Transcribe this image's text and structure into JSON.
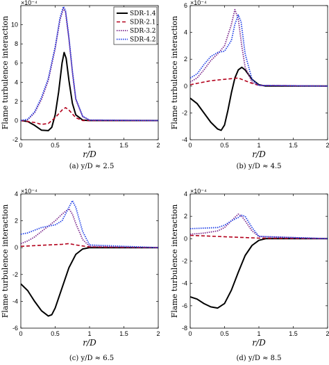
{
  "figure": {
    "series_styles": [
      {
        "name": "SDR-1.4",
        "color": "#000000",
        "dash": "",
        "width": 2
      },
      {
        "name": "SDR-2.1",
        "color": "#b3001b",
        "dash": "5,3",
        "width": 1.6
      },
      {
        "name": "SDR-3.2",
        "color": "#7d2a8c",
        "dash": "1.5,1.5",
        "width": 1.8
      },
      {
        "name": "SDR-4.2",
        "color": "#1f3fe6",
        "dash": "1.5,1.5",
        "width": 1.8
      }
    ]
  },
  "chart_data": [
    {
      "type": "line",
      "caption": "(a) y/D ≈ 2.5",
      "ylabel": "Flame turbulence interaction",
      "xlabel": "r/D",
      "y_exponent": "×10⁻⁴",
      "xlim": [
        0,
        2
      ],
      "ylim": [
        -2,
        12
      ],
      "xticks": [
        "0",
        "0.5",
        "1",
        "1.5",
        "2"
      ],
      "yticks": [
        "-2",
        "0",
        "2",
        "4",
        "6",
        "8",
        "10"
      ],
      "legend": "top-right",
      "series": [
        {
          "name": "SDR-1.4",
          "points": [
            [
              0,
              0
            ],
            [
              0.1,
              -0.1
            ],
            [
              0.2,
              -0.5
            ],
            [
              0.3,
              -1.0
            ],
            [
              0.4,
              -1.05
            ],
            [
              0.45,
              -0.7
            ],
            [
              0.5,
              0.6
            ],
            [
              0.55,
              3.0
            ],
            [
              0.6,
              6.0
            ],
            [
              0.63,
              7.1
            ],
            [
              0.66,
              6.5
            ],
            [
              0.7,
              4.2
            ],
            [
              0.75,
              1.8
            ],
            [
              0.8,
              0.6
            ],
            [
              0.9,
              0.05
            ],
            [
              1,
              0
            ],
            [
              2,
              0
            ]
          ]
        },
        {
          "name": "SDR-2.1",
          "points": [
            [
              0,
              0
            ],
            [
              0.2,
              -0.2
            ],
            [
              0.3,
              -0.4
            ],
            [
              0.4,
              -0.3
            ],
            [
              0.5,
              0.3
            ],
            [
              0.6,
              1.1
            ],
            [
              0.65,
              1.35
            ],
            [
              0.7,
              1.1
            ],
            [
              0.8,
              0.3
            ],
            [
              0.9,
              0
            ],
            [
              2,
              0
            ]
          ]
        },
        {
          "name": "SDR-3.2",
          "points": [
            [
              0,
              0
            ],
            [
              0.1,
              0.1
            ],
            [
              0.2,
              0.8
            ],
            [
              0.3,
              2.2
            ],
            [
              0.4,
              4.2
            ],
            [
              0.5,
              7.5
            ],
            [
              0.57,
              10.5
            ],
            [
              0.62,
              11.7
            ],
            [
              0.65,
              11.3
            ],
            [
              0.7,
              8.5
            ],
            [
              0.75,
              5.0
            ],
            [
              0.8,
              2.2
            ],
            [
              0.9,
              0.4
            ],
            [
              1,
              0.05
            ],
            [
              2,
              0
            ]
          ]
        },
        {
          "name": "SDR-4.2",
          "points": [
            [
              0,
              0
            ],
            [
              0.1,
              0.15
            ],
            [
              0.2,
              0.9
            ],
            [
              0.3,
              2.4
            ],
            [
              0.4,
              4.4
            ],
            [
              0.5,
              7.7
            ],
            [
              0.57,
              10.7
            ],
            [
              0.62,
              11.9
            ],
            [
              0.65,
              11.5
            ],
            [
              0.7,
              8.7
            ],
            [
              0.75,
              5.2
            ],
            [
              0.8,
              2.3
            ],
            [
              0.9,
              0.45
            ],
            [
              1,
              0.05
            ],
            [
              2,
              0
            ]
          ]
        }
      ]
    },
    {
      "type": "line",
      "caption": "(b) y/D ≈ 4.5",
      "ylabel": "Flame turbulence interaction",
      "xlabel": "r/D",
      "y_exponent": "×10⁻⁴",
      "xlim": [
        0,
        2
      ],
      "ylim": [
        -4,
        6
      ],
      "xticks": [
        "0",
        "0.5",
        "1",
        "1.5",
        "2"
      ],
      "yticks": [
        "-4",
        "-2",
        "0",
        "2",
        "4",
        "6"
      ],
      "series": [
        {
          "name": "SDR-1.4",
          "points": [
            [
              0,
              -0.9
            ],
            [
              0.1,
              -1.3
            ],
            [
              0.2,
              -2.0
            ],
            [
              0.3,
              -2.7
            ],
            [
              0.4,
              -3.2
            ],
            [
              0.45,
              -3.3
            ],
            [
              0.5,
              -2.9
            ],
            [
              0.55,
              -1.8
            ],
            [
              0.6,
              -0.5
            ],
            [
              0.65,
              0.6
            ],
            [
              0.7,
              1.2
            ],
            [
              0.75,
              1.4
            ],
            [
              0.8,
              1.2
            ],
            [
              0.9,
              0.5
            ],
            [
              1,
              0.1
            ],
            [
              1.1,
              0
            ],
            [
              2,
              0
            ]
          ]
        },
        {
          "name": "SDR-2.1",
          "points": [
            [
              0,
              0.1
            ],
            [
              0.1,
              0.2
            ],
            [
              0.2,
              0.3
            ],
            [
              0.3,
              0.4
            ],
            [
              0.4,
              0.45
            ],
            [
              0.5,
              0.5
            ],
            [
              0.6,
              0.55
            ],
            [
              0.7,
              0.6
            ],
            [
              0.8,
              0.4
            ],
            [
              0.9,
              0.2
            ],
            [
              1,
              0.05
            ],
            [
              2,
              0
            ]
          ]
        },
        {
          "name": "SDR-3.2",
          "points": [
            [
              0,
              0.3
            ],
            [
              0.1,
              0.6
            ],
            [
              0.2,
              1.2
            ],
            [
              0.3,
              1.9
            ],
            [
              0.4,
              2.4
            ],
            [
              0.5,
              3.0
            ],
            [
              0.6,
              4.6
            ],
            [
              0.65,
              5.7
            ],
            [
              0.7,
              5.0
            ],
            [
              0.75,
              3.0
            ],
            [
              0.8,
              1.4
            ],
            [
              0.9,
              0.3
            ],
            [
              1,
              0.05
            ],
            [
              2,
              0
            ]
          ]
        },
        {
          "name": "SDR-4.2",
          "points": [
            [
              0,
              0.6
            ],
            [
              0.1,
              0.9
            ],
            [
              0.2,
              1.6
            ],
            [
              0.3,
              2.2
            ],
            [
              0.4,
              2.5
            ],
            [
              0.5,
              2.6
            ],
            [
              0.6,
              3.4
            ],
            [
              0.65,
              4.6
            ],
            [
              0.7,
              5.3
            ],
            [
              0.74,
              4.8
            ],
            [
              0.8,
              2.4
            ],
            [
              0.9,
              0.5
            ],
            [
              1,
              0.05
            ],
            [
              2,
              0
            ]
          ]
        }
      ]
    },
    {
      "type": "line",
      "caption": "(c) y/D ≈ 6.5",
      "ylabel": "Flame turbulence interaction",
      "xlabel": "r/D",
      "y_exponent": "×10⁻⁴",
      "xlim": [
        0,
        2
      ],
      "ylim": [
        -6,
        4
      ],
      "xticks": [
        "0",
        "0.5",
        "1",
        "1.5",
        "2"
      ],
      "yticks": [
        "-6",
        "-4",
        "-2",
        "0",
        "2",
        "4"
      ],
      "series": [
        {
          "name": "SDR-1.4",
          "points": [
            [
              0,
              -2.7
            ],
            [
              0.1,
              -3.2
            ],
            [
              0.2,
              -4.0
            ],
            [
              0.3,
              -4.7
            ],
            [
              0.4,
              -5.1
            ],
            [
              0.45,
              -5.0
            ],
            [
              0.5,
              -4.5
            ],
            [
              0.6,
              -3.0
            ],
            [
              0.7,
              -1.5
            ],
            [
              0.8,
              -0.5
            ],
            [
              0.9,
              -0.1
            ],
            [
              1,
              0
            ],
            [
              2,
              0
            ]
          ]
        },
        {
          "name": "SDR-2.1",
          "points": [
            [
              0,
              0.1
            ],
            [
              0.2,
              0.15
            ],
            [
              0.4,
              0.2
            ],
            [
              0.6,
              0.25
            ],
            [
              0.7,
              0.3
            ],
            [
              0.8,
              0.2
            ],
            [
              1,
              0.05
            ],
            [
              2,
              0
            ]
          ]
        },
        {
          "name": "SDR-3.2",
          "points": [
            [
              0,
              0.3
            ],
            [
              0.1,
              0.5
            ],
            [
              0.2,
              0.8
            ],
            [
              0.3,
              1.2
            ],
            [
              0.4,
              1.6
            ],
            [
              0.5,
              2.0
            ],
            [
              0.6,
              2.5
            ],
            [
              0.7,
              2.9
            ],
            [
              0.75,
              2.5
            ],
            [
              0.8,
              1.8
            ],
            [
              0.9,
              0.6
            ],
            [
              1,
              0.1
            ],
            [
              2,
              0
            ]
          ]
        },
        {
          "name": "SDR-4.2",
          "points": [
            [
              0,
              1.0
            ],
            [
              0.1,
              1.1
            ],
            [
              0.2,
              1.3
            ],
            [
              0.3,
              1.5
            ],
            [
              0.4,
              1.6
            ],
            [
              0.5,
              1.7
            ],
            [
              0.6,
              2.0
            ],
            [
              0.7,
              3.0
            ],
            [
              0.75,
              3.5
            ],
            [
              0.8,
              3.0
            ],
            [
              0.9,
              1.2
            ],
            [
              1,
              0.2
            ],
            [
              2,
              0
            ]
          ]
        }
      ]
    },
    {
      "type": "line",
      "caption": "(d) y/D ≈ 8.5",
      "ylabel": "Flame turbulence interaction",
      "xlabel": "r/D",
      "y_exponent": "×10⁻⁴",
      "xlim": [
        0,
        2
      ],
      "ylim": [
        -8,
        4
      ],
      "xticks": [
        "0",
        "0.5",
        "1",
        "1.5",
        "2"
      ],
      "yticks": [
        "-8",
        "-6",
        "-4",
        "-2",
        "0",
        "2",
        "4"
      ],
      "series": [
        {
          "name": "SDR-1.4",
          "points": [
            [
              0,
              -5.2
            ],
            [
              0.1,
              -5.4
            ],
            [
              0.2,
              -5.8
            ],
            [
              0.3,
              -6.1
            ],
            [
              0.4,
              -6.2
            ],
            [
              0.5,
              -5.8
            ],
            [
              0.6,
              -4.6
            ],
            [
              0.7,
              -3.0
            ],
            [
              0.8,
              -1.5
            ],
            [
              0.9,
              -0.6
            ],
            [
              1,
              -0.15
            ],
            [
              1.1,
              0
            ],
            [
              2,
              0
            ]
          ]
        },
        {
          "name": "SDR-2.1",
          "points": [
            [
              0,
              0.3
            ],
            [
              0.2,
              0.25
            ],
            [
              0.4,
              0.2
            ],
            [
              0.6,
              0.15
            ],
            [
              0.8,
              0.1
            ],
            [
              1,
              0.05
            ],
            [
              2,
              0
            ]
          ]
        },
        {
          "name": "SDR-3.2",
          "points": [
            [
              0,
              0.4
            ],
            [
              0.2,
              0.5
            ],
            [
              0.4,
              0.7
            ],
            [
              0.5,
              1.0
            ],
            [
              0.6,
              1.6
            ],
            [
              0.7,
              2.2
            ],
            [
              0.75,
              2.0
            ],
            [
              0.8,
              1.6
            ],
            [
              0.9,
              0.7
            ],
            [
              1,
              0.2
            ],
            [
              2,
              0
            ]
          ]
        },
        {
          "name": "SDR-4.2",
          "points": [
            [
              0,
              0.9
            ],
            [
              0.2,
              0.95
            ],
            [
              0.4,
              1.0
            ],
            [
              0.5,
              1.2
            ],
            [
              0.6,
              1.6
            ],
            [
              0.7,
              1.9
            ],
            [
              0.75,
              2.1
            ],
            [
              0.8,
              2.0
            ],
            [
              0.9,
              1.0
            ],
            [
              1,
              0.2
            ],
            [
              2,
              0
            ]
          ]
        }
      ]
    }
  ]
}
